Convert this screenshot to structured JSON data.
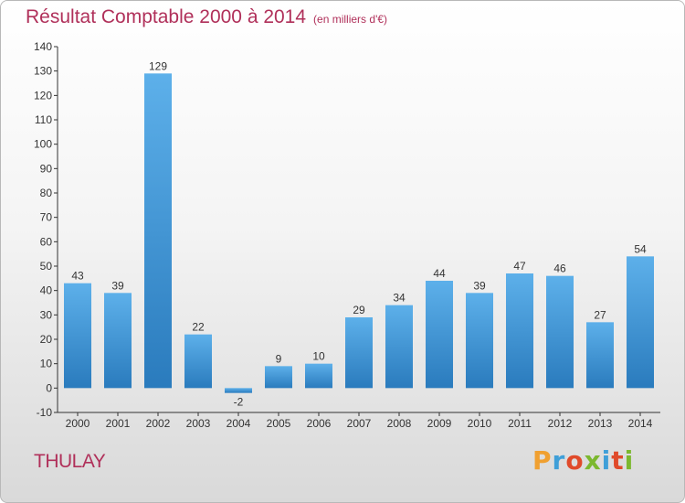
{
  "header": {
    "title": "Résultat Comptable 2000 à 2014",
    "unit": "(en milliers d'€)"
  },
  "footer": {
    "commune": "THULAY",
    "logo_text": "Proxiti",
    "logo_colors": [
      "#f0a030",
      "#3f9fd8",
      "#e04a2a",
      "#7cb82f",
      "#3f9fd8",
      "#e04a2a",
      "#7cb82f"
    ]
  },
  "colors": {
    "title": "#b0305a",
    "bar_light": "#5db0ea",
    "bar_dark": "#2a7bbd",
    "axis": "#333333"
  },
  "chart_data": {
    "type": "bar",
    "categories": [
      "2000",
      "2001",
      "2002",
      "2003",
      "2004",
      "2005",
      "2006",
      "2007",
      "2008",
      "2009",
      "2010",
      "2011",
      "2012",
      "2013",
      "2014"
    ],
    "values": [
      43,
      39,
      129,
      22,
      -2,
      9,
      10,
      29,
      34,
      44,
      39,
      47,
      46,
      27,
      54
    ],
    "ylim": [
      -10,
      140
    ],
    "yticks": [
      -10,
      0,
      10,
      20,
      30,
      40,
      50,
      60,
      70,
      80,
      90,
      100,
      110,
      120,
      130,
      140
    ],
    "grid": false,
    "data_labels": true
  }
}
